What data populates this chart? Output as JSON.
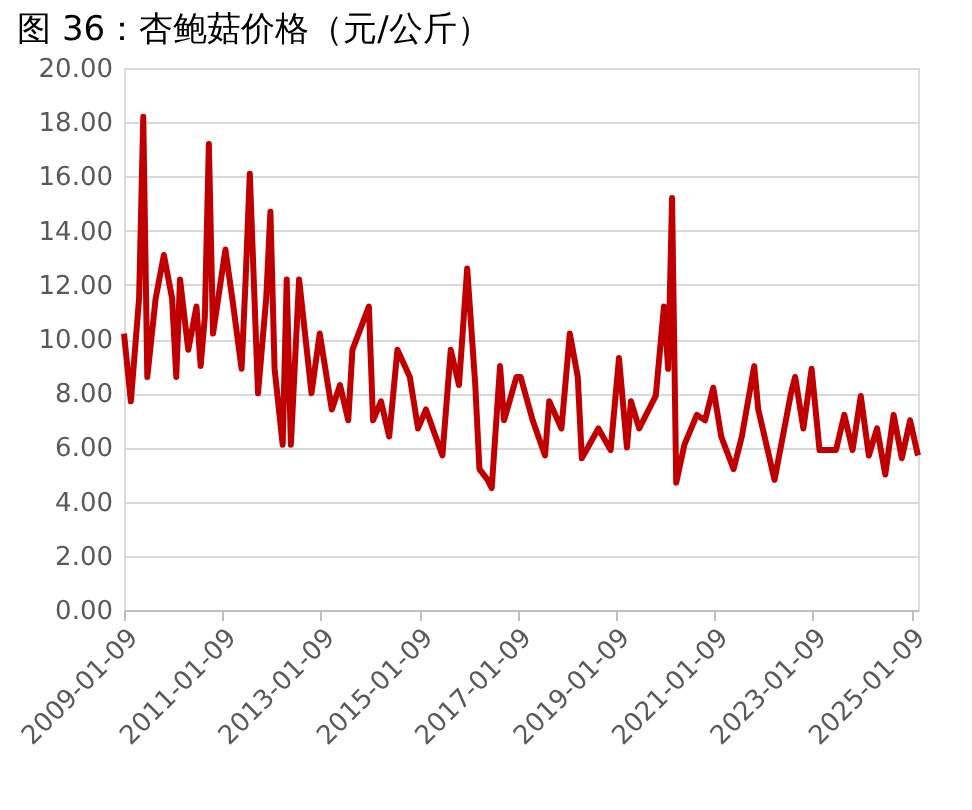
{
  "chart_data": {
    "type": "line",
    "title": "图 36：杏鲍菇价格（元/公斤）",
    "x": [
      "2009-01-09",
      "2009-03",
      "2009-05",
      "2009-06",
      "2009-07",
      "2009-09",
      "2009-11",
      "2010-01",
      "2010-02",
      "2010-03",
      "2010-05",
      "2010-07",
      "2010-08",
      "2010-09",
      "2010-10",
      "2010-11",
      "2011-02",
      "2011-04",
      "2011-06",
      "2011-07",
      "2011-08",
      "2011-10",
      "2011-12",
      "2012-01",
      "2012-02",
      "2012-04",
      "2012-05",
      "2012-06",
      "2012-08",
      "2012-11",
      "2013-01",
      "2013-04",
      "2013-06",
      "2013-08",
      "2013-09",
      "2014-01",
      "2014-02",
      "2014-04",
      "2014-06",
      "2014-08",
      "2014-11",
      "2015-01",
      "2015-03",
      "2015-07",
      "2015-09",
      "2015-11",
      "2016-01",
      "2016-03",
      "2016-04",
      "2016-06",
      "2016-07",
      "2016-09",
      "2016-10",
      "2017-01",
      "2017-02",
      "2017-05",
      "2017-08",
      "2017-09",
      "2017-12",
      "2018-02",
      "2018-04",
      "2018-05",
      "2018-09",
      "2018-12",
      "2019-02",
      "2019-04",
      "2019-05",
      "2019-07",
      "2019-11",
      "2020-01",
      "2020-02",
      "2020-03",
      "2020-04",
      "2020-06",
      "2020-09",
      "2020-11",
      "2021-01",
      "2021-03",
      "2021-06",
      "2021-08",
      "2021-11",
      "2021-12",
      "2022-04",
      "2022-08",
      "2022-09",
      "2022-11",
      "2023-01",
      "2023-03",
      "2023-07",
      "2023-09",
      "2023-11",
      "2024-01",
      "2024-03",
      "2024-05",
      "2024-07",
      "2024-09",
      "2024-11",
      "2025-01",
      "2025-03"
    ],
    "series": [
      {
        "color": "#c00000",
        "values": [
          10.2,
          7.7,
          11.5,
          18.2,
          8.6,
          11.5,
          13.1,
          11.5,
          8.6,
          12.2,
          9.6,
          11.2,
          9.0,
          10.8,
          17.2,
          10.2,
          13.3,
          11.2,
          8.9,
          12.2,
          16.1,
          8.0,
          11.5,
          14.7,
          8.9,
          6.1,
          12.2,
          6.1,
          12.2,
          8.0,
          10.2,
          7.4,
          8.3,
          7.0,
          9.6,
          11.2,
          7.0,
          7.7,
          6.4,
          9.6,
          8.6,
          6.7,
          7.4,
          5.7,
          9.6,
          8.3,
          12.6,
          8.3,
          5.2,
          4.8,
          4.5,
          9.0,
          7.0,
          8.6,
          8.6,
          7.0,
          5.7,
          7.7,
          6.7,
          10.2,
          8.6,
          5.6,
          6.7,
          5.9,
          9.3,
          6.0,
          7.7,
          6.7,
          7.9,
          11.2,
          8.9,
          15.2,
          4.7,
          6.1,
          7.2,
          7.0,
          8.2,
          6.4,
          5.2,
          6.4,
          9.0,
          7.4,
          4.8,
          8.0,
          8.6,
          6.7,
          8.9,
          5.9,
          5.9,
          7.2,
          5.9,
          7.9,
          5.7,
          6.7,
          5.0,
          7.2,
          5.6,
          7.0,
          5.7
        ]
      }
    ],
    "xlim": [
      "2009-01-09",
      "2025-03-01"
    ],
    "xticks": [
      "2009-01-09",
      "2011-01-09",
      "2013-01-09",
      "2015-01-09",
      "2017-01-09",
      "2019-01-09",
      "2021-01-09",
      "2023-01-09",
      "2025-01-09"
    ],
    "ylim": [
      0,
      20
    ],
    "yticks": [
      {
        "value": 0,
        "label": "0.00"
      },
      {
        "value": 2,
        "label": "2.00"
      },
      {
        "value": 4,
        "label": "4.00"
      },
      {
        "value": 6,
        "label": "6.00"
      },
      {
        "value": 8,
        "label": "8.00"
      },
      {
        "value": 10,
        "label": "10.00"
      },
      {
        "value": 12,
        "label": "12.00"
      },
      {
        "value": 14,
        "label": "14.00"
      },
      {
        "value": 16,
        "label": "16.00"
      },
      {
        "value": 18,
        "label": "18.00"
      },
      {
        "value": 20,
        "label": "20.00"
      }
    ],
    "grid": "y",
    "legend": false,
    "marker": "none",
    "line_style": "solid"
  }
}
